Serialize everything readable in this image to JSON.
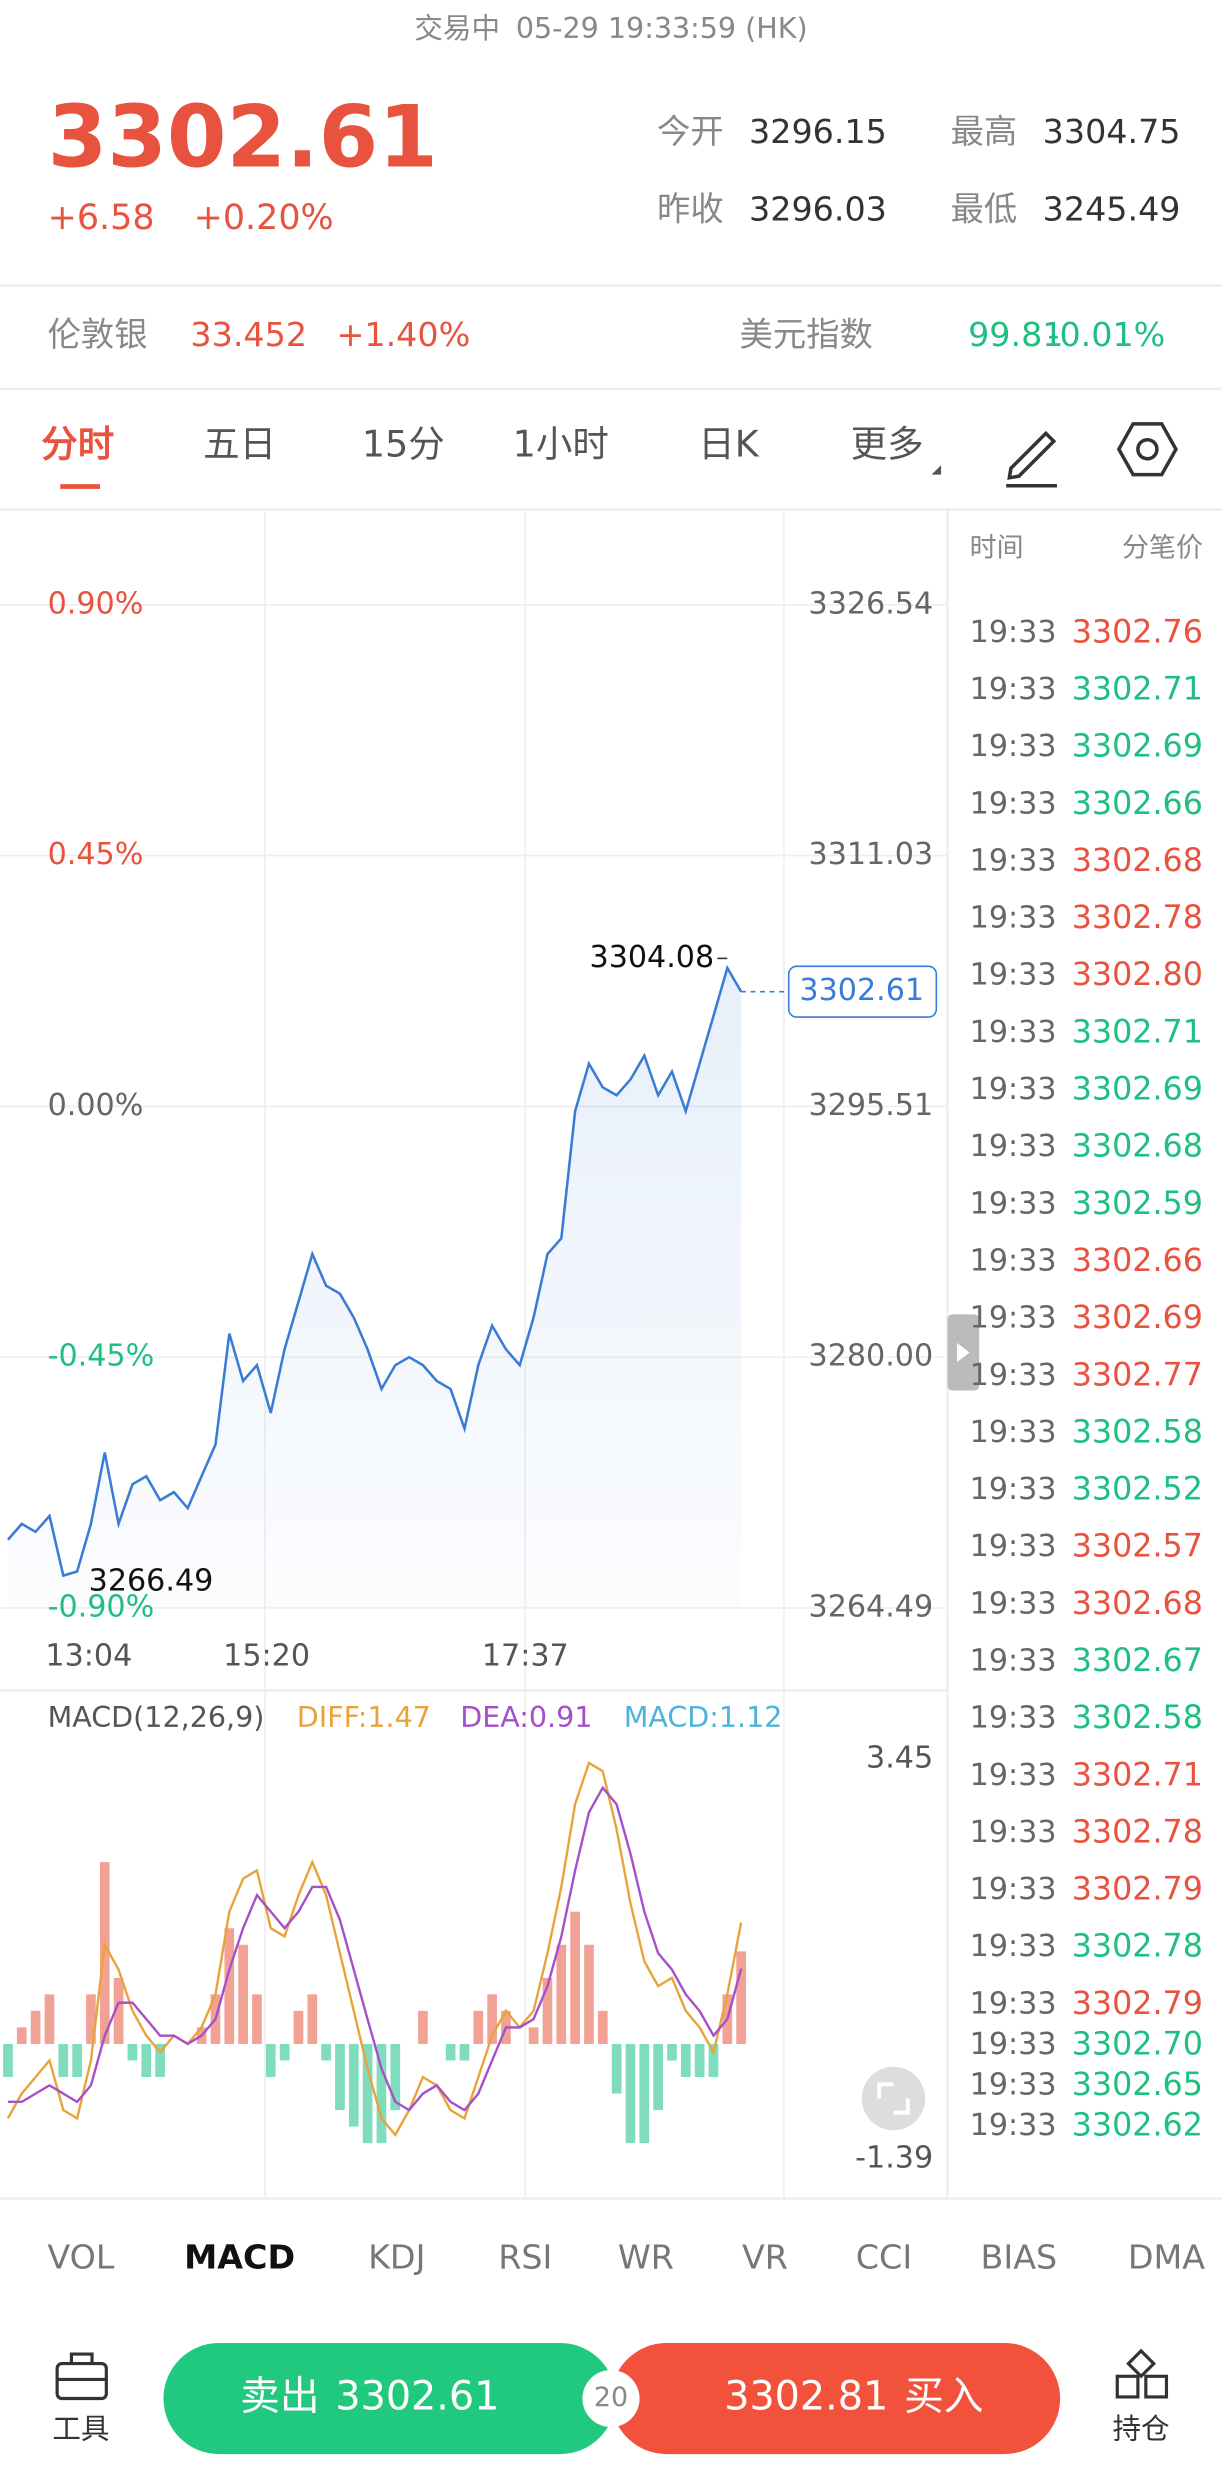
{
  "header": {
    "status": "交易中",
    "time": "05-29 19:33:59 (HK)"
  },
  "quote": {
    "price": "3302.61",
    "change": "+6.58",
    "change_pct": "+0.20%",
    "stats": [
      {
        "label": "今开",
        "value": "3296.15"
      },
      {
        "label": "最高",
        "value": "3304.75"
      },
      {
        "label": "昨收",
        "value": "3296.03"
      },
      {
        "label": "最低",
        "value": "3245.49"
      }
    ]
  },
  "related": [
    {
      "name": "伦敦银",
      "value": "33.452",
      "change": "+1.40%",
      "side": "up"
    },
    {
      "name": "美元指数",
      "value": "99.81",
      "change": "-0.01%",
      "side": "down"
    }
  ],
  "tabs": [
    "分时",
    "五日",
    "15分",
    "1小时",
    "日K",
    "更多"
  ],
  "price_chart": {
    "type": "line",
    "color": "#3a7bd5",
    "values": [
      3268.71,
      3269.69,
      3269.2,
      3270.18,
      3266.49,
      3266.75,
      3269.69,
      3274.11,
      3269.69,
      3272.15,
      3272.64,
      3271.16,
      3271.66,
      3270.67,
      3272.64,
      3274.6,
      3281.47,
      3278.53,
      3279.51,
      3276.56,
      3280.49,
      3283.44,
      3286.38,
      3284.42,
      3283.93,
      3282.46,
      3280.49,
      3278.04,
      3279.51,
      3280.0,
      3279.51,
      3278.53,
      3278.04,
      3275.58,
      3279.51,
      3281.96,
      3280.49,
      3279.51,
      3282.46,
      3286.38,
      3287.36,
      3295.22,
      3298.16,
      3296.69,
      3296.2,
      3297.18,
      3298.66,
      3296.2,
      3297.67,
      3295.22,
      3298.16,
      3301.11,
      3304.08,
      3302.61
    ],
    "ylim": [
      3264.49,
      3326.54
    ],
    "yticks": [
      3264.49,
      {
        "value": 3280,
        "label": "3280.00"
      },
      3295.51,
      3311.03,
      3326.54
    ],
    "pct_labels": [
      "-0.90%",
      "-0.45%",
      "0.00%",
      "0.45%",
      "0.90%"
    ],
    "x_labels": [
      "13:04",
      "15:20",
      "17:37"
    ]
  },
  "macd_chart": {
    "type": "macd",
    "title": "MACD(12,26,9)",
    "ylim": [
      -1.39,
      3.45
    ],
    "yticks": [
      -1.39,
      3.45
    ],
    "series": [
      {
        "label": "DIFF:1.47",
        "color": "#e8a33a",
        "values": [
          -0.9,
          -0.6,
          -0.4,
          -0.2,
          -0.8,
          -0.9,
          -0.2,
          1.2,
          0.9,
          0.4,
          0.1,
          -0.1,
          0.1,
          0.0,
          0.2,
          0.6,
          1.6,
          2.0,
          2.1,
          1.4,
          1.3,
          1.8,
          2.2,
          1.8,
          1.1,
          0.4,
          -0.3,
          -0.9,
          -1.1,
          -0.8,
          -0.4,
          -0.5,
          -0.8,
          -0.9,
          -0.4,
          0.1,
          0.4,
          0.2,
          0.4,
          1.1,
          1.9,
          2.9,
          3.4,
          3.3,
          2.6,
          1.7,
          1.0,
          0.7,
          0.8,
          0.4,
          0.2,
          -0.1,
          0.6,
          1.47
        ]
      },
      {
        "label": "DEA:0.91",
        "color": "#a54fc9",
        "values": [
          -0.7,
          -0.7,
          -0.6,
          -0.5,
          -0.6,
          -0.7,
          -0.5,
          0.1,
          0.5,
          0.5,
          0.3,
          0.1,
          0.1,
          0.0,
          0.1,
          0.3,
          0.9,
          1.4,
          1.8,
          1.6,
          1.4,
          1.6,
          1.9,
          1.9,
          1.5,
          0.9,
          0.3,
          -0.3,
          -0.7,
          -0.8,
          -0.6,
          -0.5,
          -0.7,
          -0.8,
          -0.6,
          -0.2,
          0.2,
          0.2,
          0.3,
          0.7,
          1.3,
          2.1,
          2.8,
          3.1,
          2.9,
          2.3,
          1.6,
          1.1,
          0.9,
          0.6,
          0.4,
          0.1,
          0.3,
          0.91
        ]
      },
      {
        "label": "MACD:1.12",
        "color": "#4fb3d9",
        "up_color": "#f2a295",
        "down_color": "#7fdcbc",
        "values": [
          -0.4,
          0.2,
          0.4,
          0.6,
          -0.4,
          -0.4,
          0.6,
          2.2,
          0.8,
          -0.2,
          -0.4,
          -0.4,
          0,
          0,
          0.2,
          0.6,
          1.4,
          1.2,
          0.6,
          -0.4,
          -0.2,
          0.4,
          0.6,
          -0.2,
          -0.8,
          -1.0,
          -1.2,
          -1.2,
          -0.8,
          0,
          0.4,
          0,
          -0.2,
          -0.2,
          0.4,
          0.6,
          0.4,
          0,
          0.2,
          0.8,
          1.2,
          1.6,
          1.2,
          0.4,
          -0.6,
          -1.2,
          -1.2,
          -0.8,
          -0.2,
          -0.4,
          -0.4,
          -0.4,
          0.6,
          1.12
        ]
      }
    ]
  },
  "trades": {
    "headers": [
      "时间",
      "分笔价"
    ],
    "rows": [
      {
        "time": "19:33",
        "price": "3302.76",
        "side": "up"
      },
      {
        "time": "19:33",
        "price": "3302.71",
        "side": "down"
      },
      {
        "time": "19:33",
        "price": "3302.69",
        "side": "down"
      },
      {
        "time": "19:33",
        "price": "3302.66",
        "side": "down"
      },
      {
        "time": "19:33",
        "price": "3302.68",
        "side": "up"
      },
      {
        "time": "19:33",
        "price": "3302.78",
        "side": "up"
      },
      {
        "time": "19:33",
        "price": "3302.80",
        "side": "up"
      },
      {
        "time": "19:33",
        "price": "3302.71",
        "side": "down"
      },
      {
        "time": "19:33",
        "price": "3302.69",
        "side": "down"
      },
      {
        "time": "19:33",
        "price": "3302.68",
        "side": "down"
      },
      {
        "time": "19:33",
        "price": "3302.59",
        "side": "down"
      },
      {
        "time": "19:33",
        "price": "3302.66",
        "side": "up"
      },
      {
        "time": "19:33",
        "price": "3302.69",
        "side": "up"
      },
      {
        "time": "19:33",
        "price": "3302.77",
        "side": "up"
      },
      {
        "time": "19:33",
        "price": "3302.58",
        "side": "down"
      },
      {
        "time": "19:33",
        "price": "3302.52",
        "side": "down"
      },
      {
        "time": "19:33",
        "price": "3302.57",
        "side": "up"
      },
      {
        "time": "19:33",
        "price": "3302.68",
        "side": "up"
      },
      {
        "time": "19:33",
        "price": "3302.67",
        "side": "down"
      },
      {
        "time": "19:33",
        "price": "3302.58",
        "side": "down"
      },
      {
        "time": "19:33",
        "price": "3302.71",
        "side": "up"
      },
      {
        "time": "19:33",
        "price": "3302.78",
        "side": "up"
      },
      {
        "time": "19:33",
        "price": "3302.79",
        "side": "up"
      },
      {
        "time": "19:33",
        "price": "3302.78",
        "side": "down"
      },
      {
        "time": "19:33",
        "price": "3302.79",
        "side": "up"
      },
      {
        "time": "19:33",
        "price": "3302.70",
        "side": "down"
      },
      {
        "time": "19:33",
        "price": "3302.65",
        "side": "down"
      },
      {
        "time": "19:33",
        "price": "3302.62",
        "side": "down"
      }
    ]
  },
  "indicators": [
    "VOL",
    "MACD",
    "KDJ",
    "RSI",
    "WR",
    "VR",
    "CCI",
    "BIAS",
    "DMA"
  ],
  "bottom": {
    "tools": "工具",
    "sell_label": "卖出",
    "sell_price": "3302.61",
    "lots": "20",
    "buy_price": "3302.81",
    "buy_label": "买入",
    "position": "持仓"
  }
}
